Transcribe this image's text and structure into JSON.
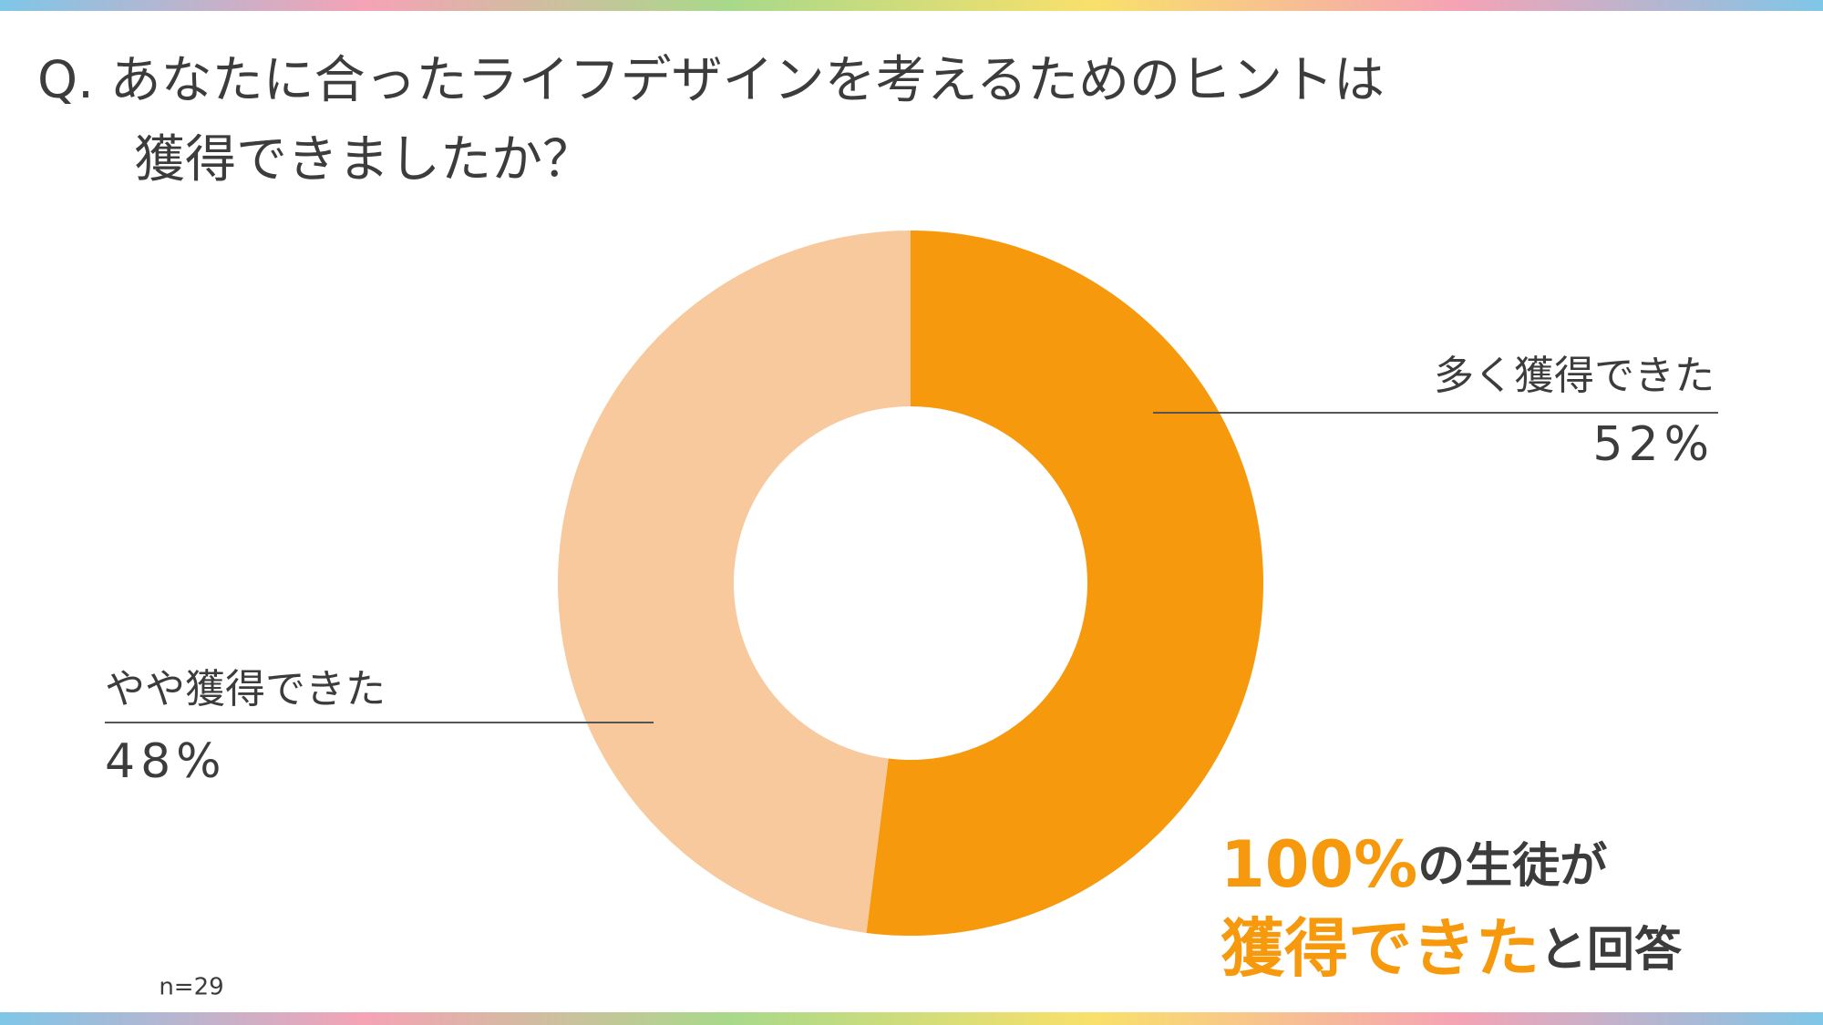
{
  "chart_data": {
    "type": "donut",
    "title": [
      "Q. あなたに合ったライフデザインを考えるためのヒントは",
      "獲得できましたか？"
    ],
    "categories": [
      "多く獲得できた",
      "やや獲得できた"
    ],
    "values": [
      52,
      48
    ],
    "value_labels": [
      "52%",
      "48%"
    ],
    "colors": [
      "#f7990c",
      "#f7c99d"
    ],
    "annotation": [
      [
        {
          "text": "100%",
          "color": "#f7990c"
        },
        {
          "text": "の生徒が",
          "color": "#3c3c3c"
        }
      ],
      [
        {
          "text": "獲得できた",
          "color": "#f7990c"
        },
        {
          "text": "と回答",
          "color": "#3c3c3c"
        }
      ]
    ],
    "note": "n=29"
  }
}
